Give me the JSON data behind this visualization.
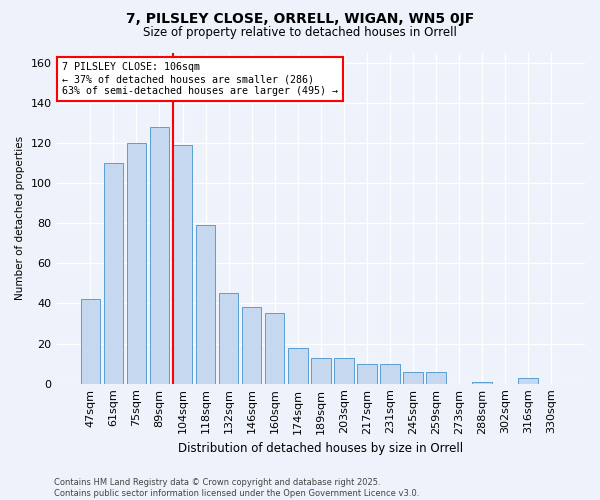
{
  "title": "7, PILSLEY CLOSE, ORRELL, WIGAN, WN5 0JF",
  "subtitle": "Size of property relative to detached houses in Orrell",
  "xlabel": "Distribution of detached houses by size in Orrell",
  "ylabel": "Number of detached properties",
  "categories": [
    "47sqm",
    "61sqm",
    "75sqm",
    "89sqm",
    "104sqm",
    "118sqm",
    "132sqm",
    "146sqm",
    "160sqm",
    "174sqm",
    "189sqm",
    "203sqm",
    "217sqm",
    "231sqm",
    "245sqm",
    "259sqm",
    "273sqm",
    "288sqm",
    "302sqm",
    "316sqm",
    "330sqm"
  ],
  "values": [
    42,
    110,
    120,
    128,
    119,
    79,
    45,
    38,
    35,
    18,
    13,
    13,
    10,
    10,
    6,
    6,
    0,
    1,
    0,
    3,
    0
  ],
  "bar_color": "#c5d8f0",
  "bar_edge_color": "#5a9fd4",
  "red_line_index": 4,
  "annotation_text": "7 PILSLEY CLOSE: 106sqm\n← 37% of detached houses are smaller (286)\n63% of semi-detached houses are larger (495) →",
  "annotation_box_color": "white",
  "annotation_box_edge": "red",
  "footer": "Contains HM Land Registry data © Crown copyright and database right 2025.\nContains public sector information licensed under the Open Government Licence v3.0.",
  "ylim": [
    0,
    165
  ],
  "yticks": [
    0,
    20,
    40,
    60,
    80,
    100,
    120,
    140,
    160
  ],
  "fig_bg": "#eef2fa",
  "ax_bg": "#eef2fa",
  "grid_color": "#ffffff"
}
